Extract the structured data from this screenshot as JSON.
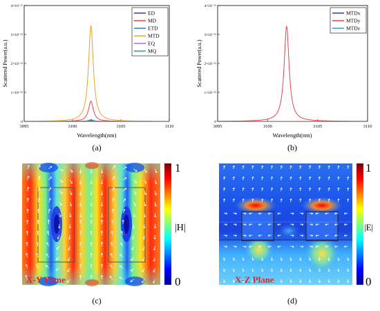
{
  "chart_data": [
    {
      "panel_label": "(a)",
      "type": "line",
      "xlabel": "Wavelength(nm)",
      "ylabel": "Scattered Power(a.u.)",
      "xlim": [
        3095,
        3110
      ],
      "ylim": [
        0,
        4e-22
      ],
      "xticks": [
        "3095",
        "3100",
        "3105",
        "3110"
      ],
      "yticks": [
        "0",
        "1×10⁻²²",
        "2×10⁻²²",
        "3×10⁻²²",
        "4×10⁻²²"
      ],
      "legend_position": "top-right",
      "resonance_nm": 3101.9,
      "series": [
        {
          "name": "ED",
          "color": "#3a3a8c",
          "peak": 4e-24,
          "width": 0.3
        },
        {
          "name": "MD",
          "color": "#e8404a",
          "peak": 7e-23,
          "width": 0.3
        },
        {
          "name": "ETD",
          "color": "#2a74c8",
          "peak": 1e-24,
          "width": 0.3
        },
        {
          "name": "MTD",
          "color": "#e8a22a",
          "peak": 3.3e-22,
          "width": 0.3
        },
        {
          "name": "EQ",
          "color": "#c060d0",
          "peak": 2e-24,
          "width": 0.3
        },
        {
          "name": "MQ",
          "color": "#26a882",
          "peak": 6e-24,
          "width": 0.3
        }
      ]
    },
    {
      "panel_label": "(b)",
      "type": "line",
      "xlabel": "Wavelength(nm)",
      "ylabel": "Scattered Power(a.u.)",
      "xlim": [
        3095,
        3110
      ],
      "ylim": [
        0,
        4e-22
      ],
      "xticks": [
        "3095",
        "3100",
        "3105",
        "3110"
      ],
      "yticks": [
        "0",
        "1×10⁻²²",
        "2×10⁻²²",
        "3×10⁻²²",
        "4×10⁻²²"
      ],
      "legend_position": "top-right",
      "resonance_nm": 3101.9,
      "series": [
        {
          "name": "MTDx",
          "color": "#3a3a8c",
          "peak": 0.0,
          "width": 0.3
        },
        {
          "name": "MTDy",
          "color": "#e8404a",
          "peak": 3.28e-22,
          "width": 0.3
        },
        {
          "name": "MTDz",
          "color": "#2a9ad0",
          "peak": 0.0,
          "width": 0.3
        }
      ]
    },
    {
      "panel_label": "(c)",
      "type": "heatmap",
      "plane_label": "X-Y Plane",
      "colorbar_label": "|H|",
      "colorbar_ticks": [
        "1",
        "0"
      ],
      "colormap": "jet",
      "crange": [
        0,
        1
      ]
    },
    {
      "panel_label": "(d)",
      "type": "heatmap",
      "plane_label": "X-Z Plane",
      "colorbar_label": "|E|",
      "colorbar_ticks": [
        "1",
        "0"
      ],
      "colormap": "jet",
      "crange": [
        0,
        1
      ]
    }
  ]
}
